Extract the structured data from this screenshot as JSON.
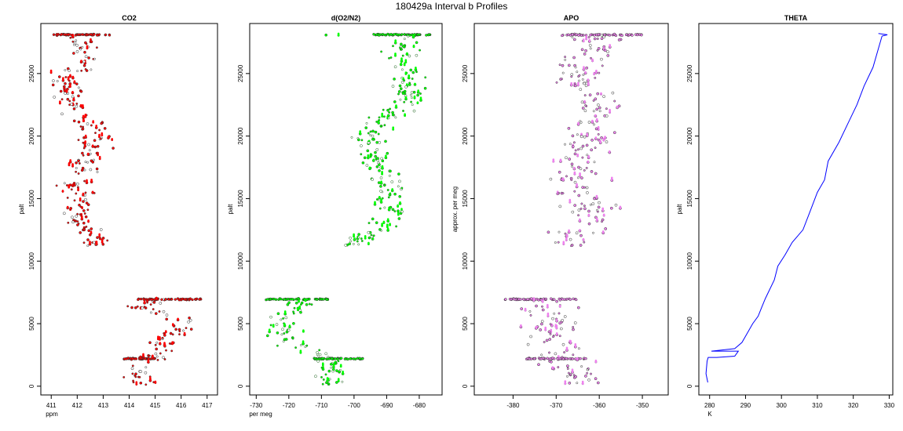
{
  "title": "180429a   Interval b Profiles",
  "colors": {
    "co2": "#ff0000",
    "o2": "#00ff00",
    "apo": "#ee82ee",
    "theta": "#0000ff",
    "outline": "#333333"
  },
  "chart_data": [
    {
      "type": "scatter",
      "title": "CO2",
      "xlabel": "ppm",
      "ylabel": "palt",
      "xlim": [
        410.6,
        417.4
      ],
      "ylim": [
        -700,
        29000
      ],
      "xticks": [
        411,
        412,
        413,
        414,
        415,
        416,
        417
      ],
      "yticks": [
        0,
        5000,
        10000,
        15000,
        20000,
        25000
      ],
      "profile": [
        [
          412.1,
          28000
        ],
        [
          412.3,
          27000
        ],
        [
          412.4,
          26000
        ],
        [
          411.7,
          25000
        ],
        [
          411.5,
          24000
        ],
        [
          411.7,
          23000
        ],
        [
          412.0,
          22000
        ],
        [
          412.6,
          21000
        ],
        [
          412.8,
          20000
        ],
        [
          412.6,
          19000
        ],
        [
          412.3,
          18000
        ],
        [
          412.0,
          17000
        ],
        [
          411.8,
          16000
        ],
        [
          412.0,
          15000
        ],
        [
          411.9,
          14000
        ],
        [
          412.2,
          13000
        ],
        [
          412.6,
          12000
        ],
        [
          412.5,
          11300
        ],
        [
          415.3,
          6900
        ],
        [
          414.4,
          6300
        ],
        [
          415.6,
          5500
        ],
        [
          416.0,
          4800
        ],
        [
          415.7,
          4000
        ],
        [
          415.4,
          3300
        ],
        [
          415.2,
          2700
        ],
        [
          414.8,
          2200
        ],
        [
          414.4,
          1600
        ],
        [
          414.3,
          1000
        ],
        [
          414.4,
          500
        ],
        [
          414.5,
          200
        ]
      ],
      "bursts": [
        {
          "y": 28100,
          "x0": 411.0,
          "x1": 413.3
        },
        {
          "y": 6950,
          "x0": 414.3,
          "x1": 416.8
        },
        {
          "y": 2200,
          "x0": 413.8,
          "x1": 415.0
        }
      ],
      "spread": 0.3
    },
    {
      "type": "scatter",
      "title": "d(O2/N2)",
      "xlabel": "per meg",
      "ylabel": "palt",
      "xlim": [
        -732,
        -673
      ],
      "ylim": [
        -700,
        29000
      ],
      "xticks": [
        -730,
        -720,
        -710,
        -700,
        -690,
        -680
      ],
      "yticks": [
        0,
        5000,
        10000,
        15000,
        20000,
        25000
      ],
      "profile": [
        [
          -682,
          28000
        ],
        [
          -685,
          27000
        ],
        [
          -686,
          26000
        ],
        [
          -683,
          25000
        ],
        [
          -683,
          24000
        ],
        [
          -684,
          23000
        ],
        [
          -686,
          22000
        ],
        [
          -692,
          21000
        ],
        [
          -695,
          20000
        ],
        [
          -694,
          19000
        ],
        [
          -695,
          18000
        ],
        [
          -690,
          17000
        ],
        [
          -689,
          16000
        ],
        [
          -690,
          15000
        ],
        [
          -688,
          14000
        ],
        [
          -690,
          13000
        ],
        [
          -697,
          12000
        ],
        [
          -700,
          11300
        ],
        [
          -718,
          6900
        ],
        [
          -716,
          6300
        ],
        [
          -723,
          5500
        ],
        [
          -722,
          4800
        ],
        [
          -721,
          4000
        ],
        [
          -718,
          3300
        ],
        [
          -714,
          2700
        ],
        [
          -708,
          2200
        ],
        [
          -706,
          1600
        ],
        [
          -706,
          1000
        ],
        [
          -707,
          500
        ],
        [
          -708,
          200
        ]
      ],
      "bursts": [
        {
          "y": 28100,
          "x0": -694,
          "x1": -676
        },
        {
          "y": 6950,
          "x0": -727,
          "x1": -708
        },
        {
          "y": 2200,
          "x0": -713,
          "x1": -697
        }
      ],
      "spread": 2.5
    },
    {
      "type": "scatter",
      "title": "APO",
      "xlabel": "",
      "ylabel": "approx. per meg",
      "xlim": [
        -389,
        -344
      ],
      "ylim": [
        -700,
        29000
      ],
      "xticks": [
        -380,
        -370,
        -360,
        -350
      ],
      "yticks": [
        0,
        5000,
        10000,
        15000,
        20000,
        25000
      ],
      "profile": [
        [
          -361,
          28000
        ],
        [
          -362,
          27000
        ],
        [
          -363,
          26000
        ],
        [
          -364,
          25000
        ],
        [
          -363,
          24000
        ],
        [
          -361,
          23000
        ],
        [
          -360,
          22000
        ],
        [
          -362,
          21000
        ],
        [
          -362,
          20000
        ],
        [
          -364,
          19000
        ],
        [
          -365,
          18000
        ],
        [
          -364,
          17000
        ],
        [
          -366,
          16000
        ],
        [
          -364,
          15000
        ],
        [
          -362,
          14000
        ],
        [
          -361,
          13000
        ],
        [
          -366,
          12000
        ],
        [
          -367,
          11300
        ],
        [
          -374,
          6900
        ],
        [
          -372,
          6300
        ],
        [
          -370,
          5500
        ],
        [
          -371,
          4800
        ],
        [
          -372,
          4000
        ],
        [
          -371,
          3300
        ],
        [
          -369,
          2700
        ],
        [
          -368,
          2200
        ],
        [
          -368,
          1600
        ],
        [
          -366,
          1000
        ],
        [
          -365,
          500
        ],
        [
          -365,
          200
        ]
      ],
      "bursts": [
        {
          "y": 28100,
          "x0": -369,
          "x1": -350
        },
        {
          "y": 6950,
          "x0": -382,
          "x1": -365
        },
        {
          "y": 2200,
          "x0": -377,
          "x1": -363
        }
      ],
      "spread": 3
    },
    {
      "type": "line",
      "title": "THETA",
      "xlabel": "K",
      "ylabel": "palt",
      "xlim": [
        277,
        331
      ],
      "ylim": [
        -700,
        29000
      ],
      "xticks": [
        280,
        290,
        300,
        310,
        320,
        330
      ],
      "yticks": [
        0,
        5000,
        10000,
        15000,
        20000,
        25000
      ],
      "x": [
        279.5,
        279.0,
        279.3,
        279.6,
        282.0,
        287.0,
        288.0,
        285.0,
        283.0,
        280.5,
        287.0,
        289.0,
        290.0,
        292.0,
        293.5,
        294.5,
        295.5,
        298.0,
        299.0,
        301.0,
        303.0,
        306.0,
        308.0,
        310.0,
        312.0,
        313.0,
        316.0,
        318.5,
        321.0,
        323.0,
        325.5,
        327.0,
        328.0,
        329.5,
        327.0
      ],
      "y": [
        300,
        1000,
        2000,
        2300,
        2300,
        2400,
        2800,
        2800,
        2800,
        2800,
        3000,
        3500,
        4000,
        5000,
        5600,
        6300,
        7000,
        8500,
        9600,
        10500,
        11500,
        12500,
        14000,
        15500,
        16500,
        18000,
        19500,
        21000,
        22500,
        24000,
        25500,
        27000,
        28000,
        28100,
        28200
      ]
    }
  ]
}
